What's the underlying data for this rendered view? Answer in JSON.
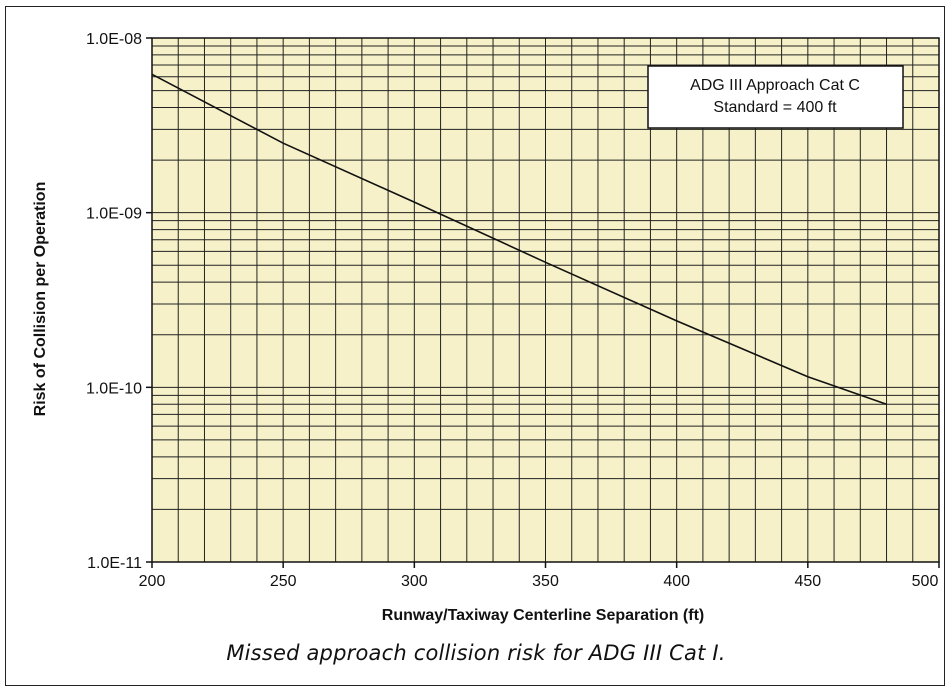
{
  "chart_data": {
    "type": "line",
    "caption": "Missed approach collision risk for ADG III Cat I.",
    "xlabel": "Runway/Taxiway Centerline Separation (ft)",
    "ylabel": "Risk of Collision per Operation",
    "xlim": [
      200,
      500
    ],
    "ylim": [
      1e-11,
      1e-08
    ],
    "yscale": "log",
    "x_ticks": [
      "200",
      "250",
      "300",
      "350",
      "400",
      "450",
      "500"
    ],
    "y_ticks": [
      "1.0E-08",
      "1.0E-09",
      "1.0E-10",
      "1.0E-11"
    ],
    "grid": true,
    "background_color": "#f6f1c8",
    "line_color": "#111111",
    "legend_position": "top-right",
    "legend_lines": [
      "ADG III Approach Cat C",
      "Standard = 400 ft"
    ],
    "series": [
      {
        "x": [
          200,
          250,
          300,
          350,
          400,
          450,
          480
        ],
        "y": [
          6.2e-09,
          2.5e-09,
          1.15e-09,
          5.2e-10,
          2.4e-10,
          1.15e-10,
          8e-11
        ]
      }
    ]
  }
}
